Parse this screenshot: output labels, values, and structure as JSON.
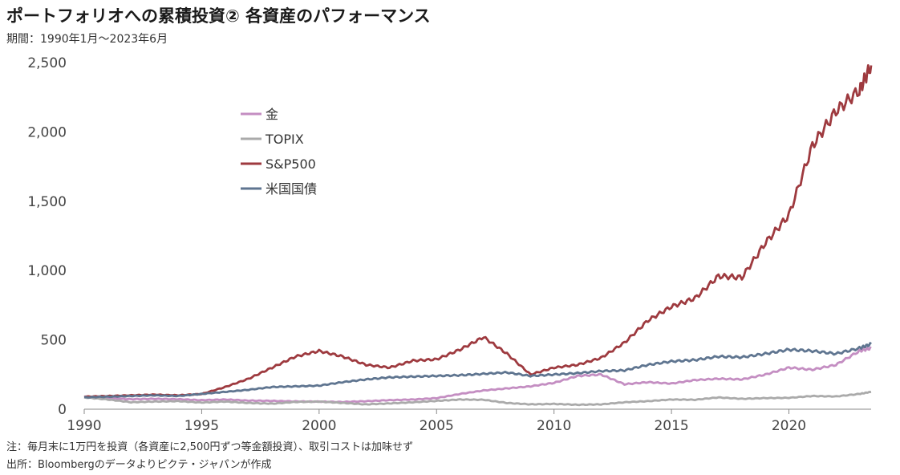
{
  "header": {
    "title": "ポートフォリオへの累積投資② 各資産のパフォーマンス",
    "period": "期間：1990年1月～2023年6月"
  },
  "footer": {
    "note": "注：毎月末に1万円を投資（各資産に2,500円ずつ等金額投資）、取引コストは加味せず",
    "source": "出所：Bloombergのデータよりピクテ・ジャパンが作成"
  },
  "chart_data": {
    "type": "line",
    "xlim": [
      1990,
      2023.5
    ],
    "ylim": [
      0,
      2500
    ],
    "x_ticks": [
      1990,
      1995,
      2000,
      2005,
      2010,
      2015,
      2020
    ],
    "x_tick_labels": [
      "1990",
      "1995",
      "2000",
      "2005",
      "2010",
      "2015",
      "2020"
    ],
    "y_ticks": [
      0,
      500,
      1000,
      1500,
      2000,
      2500
    ],
    "y_tick_labels": [
      "0",
      "500",
      "1,000",
      "1,500",
      "2,000",
      "2,500"
    ],
    "grid": false,
    "legend_position": "upper-left-inside",
    "series": [
      {
        "name": "金",
        "color": "#c48ec2",
        "points": [
          [
            1990,
            90
          ],
          [
            1991,
            80
          ],
          [
            1992,
            72
          ],
          [
            1993,
            75
          ],
          [
            1994,
            72
          ],
          [
            1995,
            65
          ],
          [
            1996,
            70
          ],
          [
            1997,
            62
          ],
          [
            1998,
            60
          ],
          [
            1999,
            56
          ],
          [
            2000,
            55
          ],
          [
            2001,
            52
          ],
          [
            2002,
            58
          ],
          [
            2003,
            65
          ],
          [
            2004,
            70
          ],
          [
            2005,
            80
          ],
          [
            2006,
            110
          ],
          [
            2007,
            135
          ],
          [
            2008,
            150
          ],
          [
            2009,
            165
          ],
          [
            2010,
            190
          ],
          [
            2011,
            240
          ],
          [
            2012,
            250
          ],
          [
            2013,
            180
          ],
          [
            2014,
            195
          ],
          [
            2015,
            185
          ],
          [
            2016,
            210
          ],
          [
            2017,
            220
          ],
          [
            2018,
            215
          ],
          [
            2019,
            250
          ],
          [
            2020,
            300
          ],
          [
            2021,
            285
          ],
          [
            2022,
            320
          ],
          [
            2023,
            420
          ],
          [
            2023.5,
            440
          ]
        ]
      },
      {
        "name": "TOPIX",
        "color": "#aaaaaa",
        "points": [
          [
            1990,
            85
          ],
          [
            1991,
            70
          ],
          [
            1992,
            50
          ],
          [
            1993,
            55
          ],
          [
            1994,
            58
          ],
          [
            1995,
            48
          ],
          [
            1996,
            55
          ],
          [
            1997,
            45
          ],
          [
            1998,
            40
          ],
          [
            1999,
            52
          ],
          [
            2000,
            55
          ],
          [
            2001,
            45
          ],
          [
            2002,
            35
          ],
          [
            2003,
            42
          ],
          [
            2004,
            50
          ],
          [
            2005,
            60
          ],
          [
            2006,
            70
          ],
          [
            2007,
            68
          ],
          [
            2008,
            45
          ],
          [
            2009,
            35
          ],
          [
            2010,
            38
          ],
          [
            2011,
            32
          ],
          [
            2012,
            35
          ],
          [
            2013,
            50
          ],
          [
            2014,
            58
          ],
          [
            2015,
            70
          ],
          [
            2016,
            68
          ],
          [
            2017,
            85
          ],
          [
            2018,
            75
          ],
          [
            2019,
            80
          ],
          [
            2020,
            82
          ],
          [
            2021,
            95
          ],
          [
            2022,
            92
          ],
          [
            2023,
            110
          ],
          [
            2023.5,
            125
          ]
        ]
      },
      {
        "name": "S&P500",
        "color": "#9e3a3f",
        "points": [
          [
            1990,
            90
          ],
          [
            1991,
            95
          ],
          [
            1992,
            100
          ],
          [
            1993,
            105
          ],
          [
            1994,
            100
          ],
          [
            1995,
            110
          ],
          [
            1996,
            160
          ],
          [
            1997,
            220
          ],
          [
            1998,
            300
          ],
          [
            1999,
            380
          ],
          [
            2000,
            420
          ],
          [
            2001,
            380
          ],
          [
            2002,
            320
          ],
          [
            2003,
            300
          ],
          [
            2004,
            350
          ],
          [
            2005,
            360
          ],
          [
            2006,
            430
          ],
          [
            2007,
            520
          ],
          [
            2008,
            400
          ],
          [
            2009,
            250
          ],
          [
            2010,
            300
          ],
          [
            2011,
            320
          ],
          [
            2012,
            370
          ],
          [
            2013,
            480
          ],
          [
            2014,
            640
          ],
          [
            2015,
            740
          ],
          [
            2016,
            800
          ],
          [
            2017,
            960
          ],
          [
            2018,
            950
          ],
          [
            2019,
            1200
          ],
          [
            2020,
            1400
          ],
          [
            2021,
            1900
          ],
          [
            2022,
            2150
          ],
          [
            2023,
            2300
          ],
          [
            2023.5,
            2480
          ]
        ]
      },
      {
        "name": "米国国債",
        "color": "#5f7590",
        "points": [
          [
            1990,
            85
          ],
          [
            1991,
            90
          ],
          [
            1992,
            95
          ],
          [
            1993,
            100
          ],
          [
            1994,
            95
          ],
          [
            1995,
            110
          ],
          [
            1996,
            125
          ],
          [
            1997,
            140
          ],
          [
            1998,
            160
          ],
          [
            1999,
            165
          ],
          [
            2000,
            170
          ],
          [
            2001,
            195
          ],
          [
            2002,
            215
          ],
          [
            2003,
            230
          ],
          [
            2004,
            235
          ],
          [
            2005,
            240
          ],
          [
            2006,
            245
          ],
          [
            2007,
            255
          ],
          [
            2008,
            265
          ],
          [
            2009,
            240
          ],
          [
            2010,
            250
          ],
          [
            2011,
            260
          ],
          [
            2012,
            275
          ],
          [
            2013,
            280
          ],
          [
            2014,
            320
          ],
          [
            2015,
            345
          ],
          [
            2016,
            355
          ],
          [
            2017,
            380
          ],
          [
            2018,
            375
          ],
          [
            2019,
            400
          ],
          [
            2020,
            430
          ],
          [
            2021,
            420
          ],
          [
            2022,
            400
          ],
          [
            2023,
            440
          ],
          [
            2023.5,
            470
          ]
        ]
      }
    ]
  }
}
